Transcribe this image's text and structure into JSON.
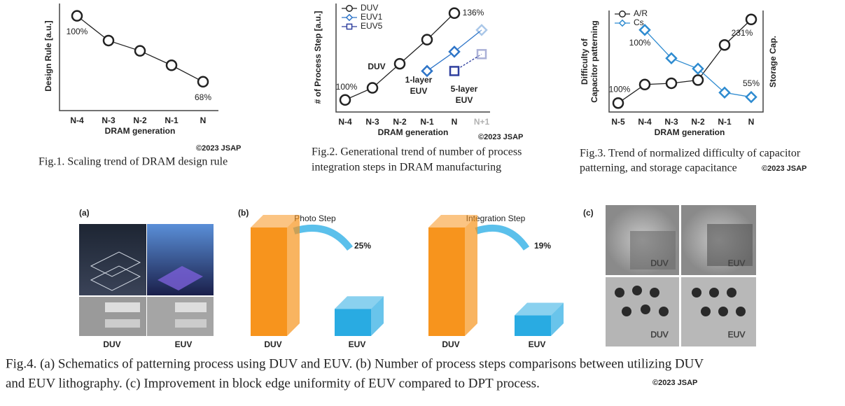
{
  "chart_data": [
    {
      "type": "line",
      "ylabel": [
        "Design Rule [a.u.]"
      ],
      "xlabel": "DRAM generation",
      "categories": [
        "N-4",
        "N-3",
        "N-2",
        "N-1",
        "N"
      ],
      "series": [
        {
          "color": "#222222",
          "marker": "circle",
          "values": [
            100,
            88,
            83,
            76,
            68
          ],
          "value_labels": [
            "100%",
            null,
            null,
            null,
            "68%"
          ]
        }
      ],
      "ylim": [
        54,
        106
      ],
      "copyright": "©2023 JSAP",
      "caption": [
        "Fig.1. Scaling trend of DRAM design rule"
      ]
    },
    {
      "type": "line",
      "ylabel": [
        "# of Process Step [a.u.]"
      ],
      "xlabel": "DRAM generation",
      "categories": [
        "N-4",
        "N-3",
        "N-2",
        "N-1",
        "N",
        "N+1"
      ],
      "series": [
        {
          "name": "DUV",
          "color": "#222222",
          "marker": "circle",
          "values": [
            100,
            105,
            115,
            125,
            136,
            null
          ],
          "value_labels": [
            "100%",
            null,
            null,
            null,
            "136%",
            null
          ]
        },
        {
          "name": "EUV1",
          "color": "#2e75c8",
          "marker": "diamond",
          "values": [
            null,
            null,
            null,
            112,
            120,
            129
          ]
        },
        {
          "name": "EUV5",
          "color": "#2f3f9e",
          "marker": "square",
          "values": [
            null,
            null,
            null,
            null,
            112,
            119
          ]
        }
      ],
      "annotations": [
        [
          "DUV"
        ],
        [
          "1-layer",
          "EUV"
        ],
        [
          "5-layer",
          "EUV"
        ]
      ],
      "ylim": [
        95,
        140
      ],
      "copyright": "©2023 JSAP",
      "caption": [
        "Fig.2. Generational trend of number of process",
        "integration steps in DRAM manufacturing"
      ]
    },
    {
      "type": "line",
      "ylabel": [
        "Difficulty of",
        "Capacitor patterning"
      ],
      "y2label": "Storage Cap.",
      "xlabel": "DRAM generation",
      "categories": [
        "N-5",
        "N-4",
        "N-3",
        "N-2",
        "N-1",
        "N"
      ],
      "series": [
        {
          "name": "A/R",
          "color": "#222222",
          "marker": "circle",
          "values": [
            100,
            129,
            131,
            136,
            191,
            231
          ],
          "value_labels": [
            "100%",
            null,
            null,
            null,
            null,
            "231%"
          ]
        },
        {
          "name": "Cs",
          "color": "#2e8bd0",
          "marker": "diamond",
          "axis": "y2",
          "values": [
            null,
            100,
            81,
            74,
            58,
            55
          ],
          "value_labels": [
            null,
            "100%",
            null,
            null,
            null,
            "55%"
          ]
        }
      ],
      "ylim": [
        86,
        245
      ],
      "y2lim": [
        45,
        113
      ],
      "copyright": "©2023 JSAP",
      "caption": [
        "Fig.3. Trend of normalized difficulty of capacitor",
        "patterning, and storage capacitance"
      ]
    },
    {
      "type": "bar3d",
      "title": "Photo Step",
      "categories": [
        "DUV",
        "EUV"
      ],
      "values": [
        100,
        25
      ],
      "value_labels": [
        null,
        "25%"
      ],
      "colors": [
        "#f7941d",
        "#29abe2"
      ],
      "ylim": [
        0,
        100
      ]
    },
    {
      "type": "bar3d",
      "title": "Integration Step",
      "categories": [
        "DUV",
        "EUV"
      ],
      "values": [
        100,
        19
      ],
      "value_labels": [
        null,
        "19%"
      ],
      "colors": [
        "#f7941d",
        "#29abe2"
      ],
      "ylim": [
        0,
        100
      ]
    }
  ],
  "figure4": {
    "panels": [
      "(a)",
      "(b)",
      "(c)"
    ],
    "panel_a_labels": [
      "DUV",
      "EUV"
    ],
    "panel_c_labels": [
      "DUV",
      "EUV",
      "DUV",
      "EUV"
    ],
    "copyright": "©2023 JSAP",
    "caption": [
      "Fig.4. (a) Schematics of patterning process using DUV and EUV. (b) Number of process steps comparisons between utilizing DUV",
      "and EUV lithography. (c) Improvement in block edge uniformity of EUV compared to DPT process."
    ]
  }
}
